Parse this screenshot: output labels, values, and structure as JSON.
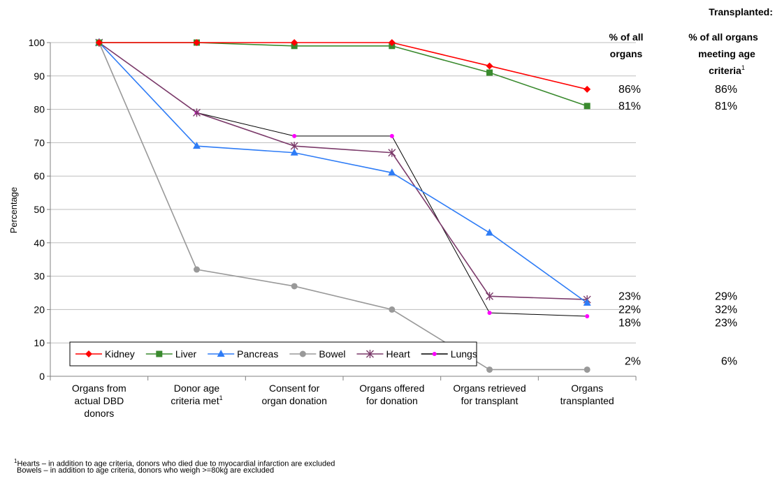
{
  "chart_data": {
    "type": "line",
    "title": "",
    "xlabel": "",
    "ylabel": "Percentage",
    "ylim": [
      0,
      100
    ],
    "yticks": [
      0,
      10,
      20,
      30,
      40,
      50,
      60,
      70,
      80,
      90,
      100
    ],
    "grid": true,
    "legend_position": "bottom-left",
    "categories": [
      {
        "lines": [
          "Organs from",
          "actual DBD",
          "donors"
        ],
        "sup": ""
      },
      {
        "lines": [
          "Donor age",
          "criteria met"
        ],
        "sup": "1"
      },
      {
        "lines": [
          "Consent for",
          "organ donation"
        ],
        "sup": ""
      },
      {
        "lines": [
          "Organs offered",
          "for donation"
        ],
        "sup": ""
      },
      {
        "lines": [
          "Organs retrieved",
          "for transplant"
        ],
        "sup": ""
      },
      {
        "lines": [
          "Organs",
          "transplanted"
        ],
        "sup": ""
      }
    ],
    "series": [
      {
        "name": "Kidney",
        "color": "#ff0000",
        "marker": "diamond",
        "values": [
          100,
          100,
          100,
          100,
          93,
          86
        ]
      },
      {
        "name": "Liver",
        "color": "#3a8a2e",
        "marker": "square",
        "values": [
          100,
          100,
          99,
          99,
          91,
          81
        ]
      },
      {
        "name": "Pancreas",
        "color": "#2e7cf6",
        "marker": "triangle",
        "values": [
          100,
          69,
          67,
          61,
          43,
          22
        ]
      },
      {
        "name": "Bowel",
        "color": "#999999",
        "marker": "circle",
        "values": [
          100,
          32,
          27,
          20,
          2,
          2
        ]
      },
      {
        "name": "Heart",
        "color": "#7b3a6a",
        "marker": "asterisk",
        "values": [
          100,
          79,
          69,
          67,
          24,
          23
        ]
      },
      {
        "name": "Lungs",
        "color": "#000000",
        "marker_color": "#ff00ff",
        "marker": "dot",
        "values": [
          100,
          79,
          72,
          72,
          19,
          18
        ]
      }
    ],
    "annotations": {
      "header": "Transplanted:",
      "col1_header": [
        "% of all",
        "organs"
      ],
      "col2_header": [
        "% of all organs",
        "meeting age",
        "criteria"
      ],
      "col2_sup": "1",
      "rows": [
        {
          "all": "86%",
          "criteria": "86%",
          "y": 86
        },
        {
          "all": "81%",
          "criteria": "81%",
          "y": 81
        },
        {
          "all": "23%",
          "criteria": "29%",
          "y": 24
        },
        {
          "all": "22%",
          "criteria": "32%",
          "y": 20
        },
        {
          "all": "18%",
          "criteria": "23%",
          "y": 16
        },
        {
          "all": "2%",
          "criteria": "6%",
          "y": 4.5
        }
      ]
    }
  },
  "footnotes": {
    "marker": "1",
    "line1": "Hearts – in addition to age criteria, donors who died due to myocardial infarction are excluded",
    "line2": "Bowels – in addition to age criteria, donors who weigh >=80kg are excluded"
  }
}
